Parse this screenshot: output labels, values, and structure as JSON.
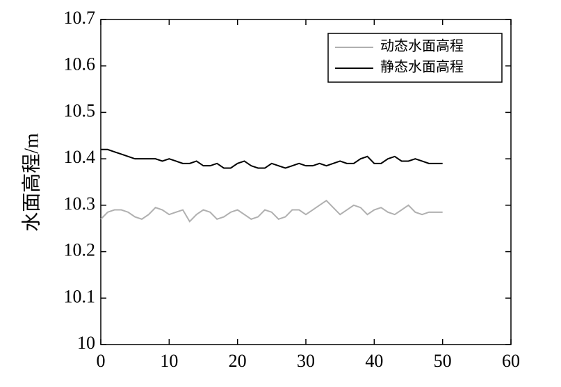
{
  "chart_data": {
    "type": "line",
    "y_label": "水面高程/m",
    "x": [
      0,
      1,
      2,
      3,
      4,
      5,
      6,
      7,
      8,
      9,
      10,
      11,
      12,
      13,
      14,
      15,
      16,
      17,
      18,
      19,
      20,
      21,
      22,
      23,
      24,
      25,
      26,
      27,
      28,
      29,
      30,
      31,
      32,
      33,
      34,
      35,
      36,
      37,
      38,
      39,
      40,
      41,
      42,
      43,
      44,
      45,
      46,
      47,
      48,
      49,
      50
    ],
    "series": [
      {
        "name": "动态水面高程",
        "color": "#b0b0b0",
        "values": [
          10.27,
          10.285,
          10.29,
          10.29,
          10.285,
          10.275,
          10.27,
          10.28,
          10.295,
          10.29,
          10.28,
          10.285,
          10.29,
          10.265,
          10.28,
          10.29,
          10.285,
          10.27,
          10.275,
          10.285,
          10.29,
          10.28,
          10.27,
          10.275,
          10.29,
          10.285,
          10.27,
          10.275,
          10.29,
          10.29,
          10.28,
          10.29,
          10.3,
          10.31,
          10.295,
          10.28,
          10.29,
          10.3,
          10.295,
          10.28,
          10.29,
          10.295,
          10.285,
          10.28,
          10.29,
          10.3,
          10.285,
          10.28,
          10.285,
          10.285,
          10.285
        ]
      },
      {
        "name": "静态水面高程",
        "color": "#000000",
        "values": [
          10.42,
          10.42,
          10.415,
          10.41,
          10.405,
          10.4,
          10.4,
          10.4,
          10.4,
          10.395,
          10.4,
          10.395,
          10.39,
          10.39,
          10.395,
          10.385,
          10.385,
          10.39,
          10.38,
          10.38,
          10.39,
          10.395,
          10.385,
          10.38,
          10.38,
          10.39,
          10.385,
          10.38,
          10.385,
          10.39,
          10.385,
          10.385,
          10.39,
          10.385,
          10.39,
          10.395,
          10.39,
          10.39,
          10.4,
          10.405,
          10.39,
          10.39,
          10.4,
          10.405,
          10.395,
          10.395,
          10.4,
          10.395,
          10.39,
          10.39,
          10.39
        ]
      }
    ],
    "xlim": [
      0,
      60
    ],
    "xticks": [
      0,
      10,
      20,
      30,
      40,
      50,
      60
    ],
    "ylim": [
      10,
      10.7
    ],
    "yticks": [
      10,
      10.1,
      10.2,
      10.3,
      10.4,
      10.5,
      10.6,
      10.7
    ],
    "legend": "upper right"
  }
}
